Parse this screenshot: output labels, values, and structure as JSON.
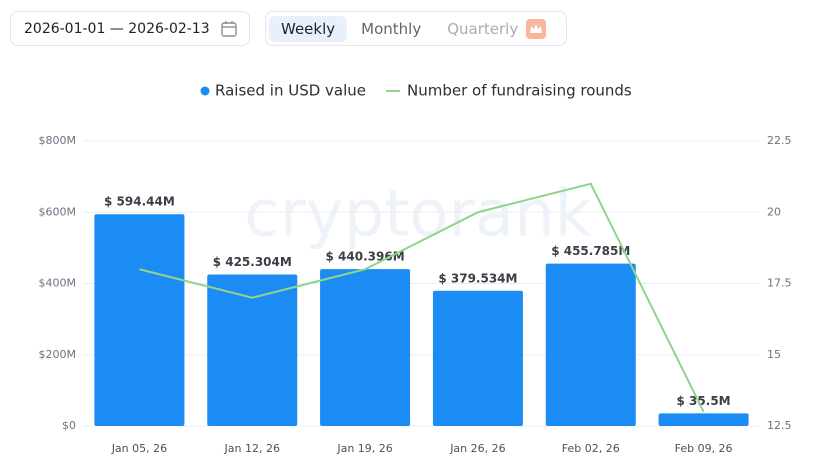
{
  "controls": {
    "date_range": "2026-01-01 — 2026-02-13",
    "tabs": [
      "Weekly",
      "Monthly",
      "Quarterly"
    ]
  },
  "chart_data": {
    "type": "bar",
    "watermark": "cryptorank",
    "categories": [
      "Jan 05, 26",
      "Jan 12, 26",
      "Jan 19, 26",
      "Jan 26, 26",
      "Feb 02, 26",
      "Feb 09, 26"
    ],
    "series": [
      {
        "name": "Raised in USD value",
        "color": "#1a8cf3",
        "type": "bar",
        "values": [
          594440000,
          425304000,
          440396000,
          379534000,
          455785000,
          35500000
        ],
        "value_labels": [
          "$ 594.44M",
          "$ 425.304M",
          "$ 440.396M",
          "$ 379.534M",
          "$ 455.785M",
          "$ 35.5M"
        ]
      },
      {
        "name": "Number of fundraising rounds",
        "color": "#8fd48a",
        "type": "line",
        "axis": "y2",
        "values": [
          18,
          17,
          18,
          20,
          21,
          13
        ]
      }
    ],
    "ylim": [
      0,
      800000000
    ],
    "yticks": [
      {
        "value": 0,
        "label": "$0"
      },
      {
        "value": 200000000,
        "label": "$200M"
      },
      {
        "value": 400000000,
        "label": "$400M"
      },
      {
        "value": 600000000,
        "label": "$600M"
      },
      {
        "value": 800000000,
        "label": "$800M"
      }
    ],
    "y2lim": [
      12.5,
      22.5
    ],
    "y2ticks": [
      12.5,
      15,
      17.5,
      20,
      22.5
    ],
    "grid": true,
    "legend": "top"
  }
}
